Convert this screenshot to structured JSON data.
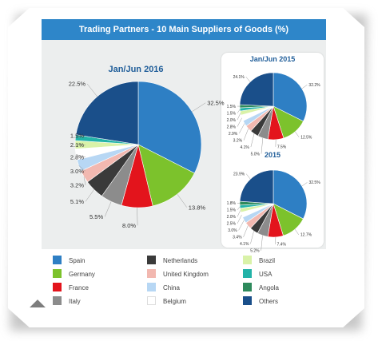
{
  "header": {
    "title": "Trading Partners - 10 Main Suppliers of Goods (%)"
  },
  "colors": {
    "Spain": "#2e7fc4",
    "Germany": "#7cc22c",
    "France": "#e3141c",
    "Italy": "#8c8c8c",
    "Netherlands": "#3a3a3a",
    "United Kingdom": "#f2b8b0",
    "China": "#b7d7f4",
    "Belgium": "#ffffff",
    "Brazil": "#d9f2a8",
    "USA": "#23b3a8",
    "Angola": "#2e8a5c",
    "Others": "#1a4f8a"
  },
  "legend": [
    "Spain",
    "Germany",
    "France",
    "Italy",
    "Netherlands",
    "United Kingdom",
    "China",
    "Belgium",
    "Brazil",
    "USA",
    "Angola",
    "Others"
  ],
  "chart_data": [
    {
      "type": "pie",
      "title": "Jan/Jun 2016",
      "categories": [
        "Spain",
        "Germany",
        "France",
        "Italy",
        "Netherlands",
        "United Kingdom",
        "China",
        "Belgium",
        "Brazil",
        "USA",
        "Angola",
        "Others"
      ],
      "values": [
        32.5,
        13.8,
        8.0,
        5.5,
        5.1,
        3.2,
        3.0,
        2.8,
        2.1,
        1.5,
        0.0,
        22.5
      ],
      "labels": [
        "32.5%",
        "13.8%",
        "8.0%",
        "5.5%",
        "5.1%",
        "3.2%",
        "3.0%",
        "2.8%",
        "2.1%",
        "1.5%",
        "",
        "22.5%"
      ]
    },
    {
      "type": "pie",
      "title": "Jan/Jun 2015",
      "categories": [
        "Spain",
        "Germany",
        "France",
        "Italy",
        "Netherlands",
        "United Kingdom",
        "China",
        "Belgium",
        "Brazil",
        "USA",
        "Angola",
        "Others"
      ],
      "values": [
        32.2,
        12.5,
        7.5,
        5.0,
        4.1,
        3.2,
        2.9,
        2.8,
        2.0,
        1.5,
        1.5,
        24.1
      ],
      "labels": [
        "32.2%",
        "12.5%",
        "7.5%",
        "5.0%",
        "4.1%",
        "3.2%",
        "2.9%",
        "2.8%",
        "2.0%",
        "1.5%",
        "1.5%",
        "24.1%"
      ]
    },
    {
      "type": "pie",
      "title": "2015",
      "categories": [
        "Spain",
        "Germany",
        "France",
        "Italy",
        "Netherlands",
        "United Kingdom",
        "China",
        "Belgium",
        "Brazil",
        "USA",
        "Angola",
        "Others"
      ],
      "values": [
        32.5,
        12.7,
        7.4,
        5.2,
        4.1,
        3.4,
        3.0,
        2.5,
        2.0,
        1.5,
        1.8,
        23.9
      ],
      "labels": [
        "32.5%",
        "12.7%",
        "7.4%",
        "5.2%",
        "4.1%",
        "3.4%",
        "3.0%",
        "2.5%",
        "2.0%",
        "1.5%",
        "1.8%",
        "23.9%"
      ]
    }
  ]
}
